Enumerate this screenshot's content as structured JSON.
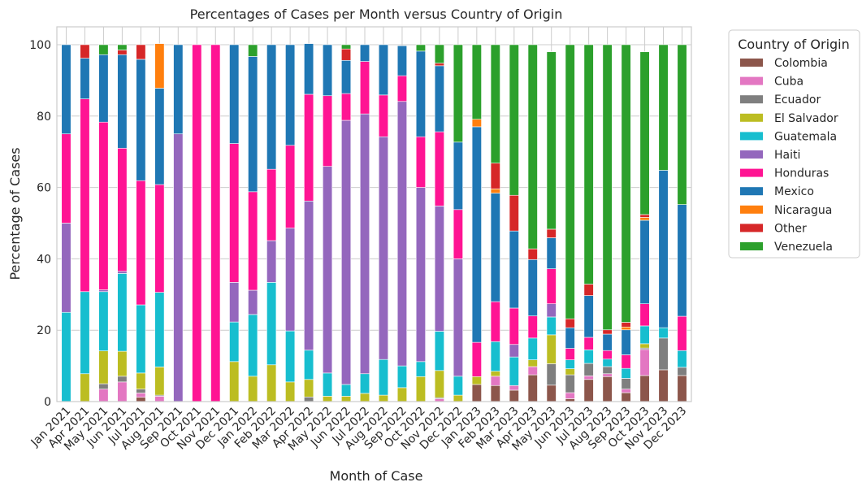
{
  "chart_data": {
    "type": "bar",
    "stacked": true,
    "title": "Percentages of Cases per Month versus Country of Origin",
    "xlabel": "Month of Case",
    "ylabel": "Percentage of Cases",
    "ylim": [
      0,
      105
    ],
    "yticks": [
      0,
      20,
      40,
      60,
      80,
      100
    ],
    "grid": true,
    "legend_position": "outside-right",
    "legend_title": "Country of Origin",
    "categories": [
      "Jan 2021",
      "Apr 2021",
      "May 2021",
      "Jun 2021",
      "Jul 2021",
      "Aug 2021",
      "Sep 2021",
      "Oct 2021",
      "Nov 2021",
      "Dec 2021",
      "Jan 2022",
      "Feb 2022",
      "Mar 2022",
      "Apr 2022",
      "May 2022",
      "Jun 2022",
      "Jul 2022",
      "Aug 2022",
      "Sep 2022",
      "Oct 2022",
      "Nov 2022",
      "Dec 2022",
      "Jan 2023",
      "Feb 2023",
      "Mar 2023",
      "Apr 2023",
      "May 2023",
      "Jun 2023",
      "Jul 2023",
      "Aug 2023",
      "Sep 2023",
      "Oct 2023",
      "Nov 2023",
      "Dec 2023"
    ],
    "series": [
      {
        "name": "Colombia",
        "color": "#8c564b",
        "values": [
          0,
          0,
          0,
          0,
          1.2,
          0,
          0,
          0,
          0,
          0,
          0,
          0,
          0,
          0,
          0,
          0,
          0,
          0,
          0,
          0,
          0,
          0,
          4.8,
          4.5,
          3.2,
          7.5,
          4.6,
          0.8,
          6.2,
          7.0,
          2.5,
          7.3,
          8.9,
          7.3
        ]
      },
      {
        "name": "Cuba",
        "color": "#e377c2",
        "values": [
          0,
          0,
          3.5,
          5.5,
          1.2,
          1.5,
          0,
          0,
          0,
          0,
          0,
          0,
          0,
          0,
          0,
          0,
          0,
          0,
          0,
          0,
          0.8,
          0,
          0,
          2.6,
          1.3,
          2.3,
          0,
          1.7,
          1.0,
          0.8,
          1.0,
          7.3,
          0,
          0
        ]
      },
      {
        "name": "Ecuador",
        "color": "#7f7f7f",
        "values": [
          0,
          0,
          1.5,
          1.6,
          1.1,
          0.3,
          0,
          0,
          0,
          0,
          0,
          0,
          0,
          1.3,
          0,
          0,
          0,
          0,
          0,
          0,
          0.3,
          0,
          0,
          0,
          0,
          0,
          6.0,
          5.0,
          3.5,
          2.0,
          3.0,
          0.4,
          8.9,
          2.3
        ]
      },
      {
        "name": "El Salvador",
        "color": "#bcbd22",
        "values": [
          0,
          7.8,
          9.2,
          7.0,
          4.5,
          7.9,
          0,
          0,
          0,
          11.2,
          7.1,
          10.3,
          5.5,
          4.9,
          1.5,
          1.5,
          2.3,
          1.8,
          3.9,
          7.0,
          7.6,
          1.8,
          2.2,
          1.4,
          0,
          1.9,
          8.1,
          1.7,
          0,
          0,
          0,
          1.2,
          0,
          0
        ]
      },
      {
        "name": "Guatemala",
        "color": "#17becf",
        "values": [
          25,
          23,
          16.6,
          21.8,
          19.1,
          20.9,
          0,
          0,
          0,
          11.1,
          17.3,
          23.1,
          14.3,
          8.2,
          6.5,
          3.3,
          5.5,
          10.0,
          6.1,
          4.2,
          11.0,
          5.3,
          0,
          8.3,
          8.0,
          6.1,
          5.0,
          2.5,
          3.8,
          2.1,
          2.8,
          5.0,
          2.9,
          4.7
        ]
      },
      {
        "name": "Haiti",
        "color": "#9467bd",
        "values": [
          25,
          0,
          0.5,
          0.6,
          0,
          0,
          75,
          0,
          0,
          11.1,
          6.8,
          11.7,
          28.8,
          41.8,
          57.9,
          74.0,
          72.8,
          62.4,
          74.1,
          48.8,
          35.1,
          32.9,
          0,
          0,
          3.5,
          0,
          3.7,
          0,
          0,
          0,
          0,
          0,
          0,
          0
        ]
      },
      {
        "name": "Honduras",
        "color": "#ff1493",
        "values": [
          25,
          54,
          47.0,
          34.5,
          34.8,
          30.2,
          0,
          100,
          100,
          38.9,
          27.6,
          20.0,
          23.2,
          29.9,
          19.8,
          7.5,
          14.7,
          11.7,
          7.2,
          14.2,
          20.8,
          13.8,
          9.6,
          11.2,
          10.2,
          6.2,
          9.8,
          3.2,
          3.5,
          2.4,
          3.8,
          6.2,
          0,
          9.6
        ]
      },
      {
        "name": "Mexico",
        "color": "#1f77b4",
        "values": [
          25,
          11.4,
          18.9,
          26.2,
          34.0,
          27.0,
          25,
          0,
          0,
          27.7,
          37.9,
          34.9,
          28.2,
          14.2,
          14.3,
          9.3,
          4.7,
          14.1,
          8.4,
          24.0,
          18.5,
          18.9,
          60.4,
          30.4,
          21.6,
          15.8,
          8.7,
          5.8,
          11.7,
          4.6,
          7.0,
          23.4,
          44.1,
          31.3
        ]
      },
      {
        "name": "Nicaragua",
        "color": "#ff7f0e",
        "values": [
          0,
          0,
          0,
          0,
          0,
          12.5,
          0,
          0,
          0,
          0,
          0,
          0,
          0,
          0,
          0,
          0,
          0,
          0,
          0,
          0,
          0,
          0,
          2.1,
          1.2,
          0,
          0,
          0,
          0,
          0,
          0,
          0.8,
          0.8,
          0,
          0
        ]
      },
      {
        "name": "Other",
        "color": "#d62728",
        "values": [
          0,
          3.8,
          0,
          1.3,
          4.1,
          0,
          0,
          0,
          0,
          0,
          0,
          0,
          0,
          0,
          0,
          3.2,
          0,
          0,
          0,
          0,
          0.7,
          0,
          0,
          7.2,
          10.0,
          3.0,
          2.4,
          2.5,
          3.2,
          1.2,
          1.3,
          0.8,
          0,
          0
        ]
      },
      {
        "name": "Venezuela",
        "color": "#2ca02c",
        "values": [
          0,
          0,
          2.8,
          1.5,
          0,
          0,
          0,
          0,
          0,
          0,
          3.3,
          0,
          0,
          0,
          0,
          1.2,
          0,
          0,
          0,
          1.8,
          5.2,
          27.3,
          20.9,
          33.2,
          42.2,
          57.2,
          49.7,
          76.8,
          67.1,
          79.9,
          77.8,
          45.6,
          35.2,
          44.8
        ]
      }
    ]
  }
}
